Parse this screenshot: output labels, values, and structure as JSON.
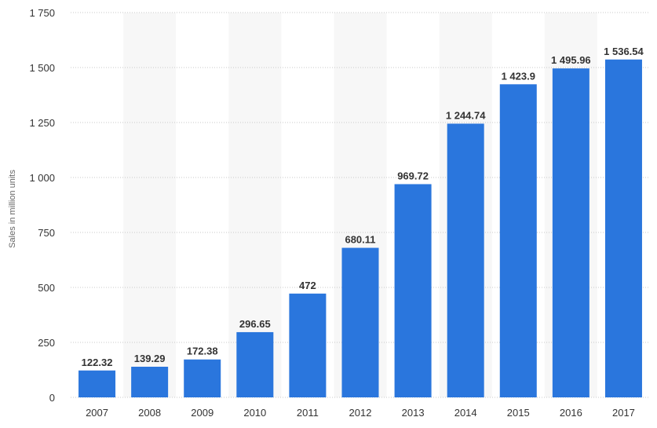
{
  "chart_data": {
    "type": "bar",
    "categories": [
      "2007",
      "2008",
      "2009",
      "2010",
      "2011",
      "2012",
      "2013",
      "2014",
      "2015",
      "2016",
      "2017"
    ],
    "values": [
      122.32,
      139.29,
      172.38,
      296.65,
      472,
      680.11,
      969.72,
      1244.74,
      1423.9,
      1495.96,
      1536.54
    ],
    "value_labels": [
      "122.32",
      "139.29",
      "172.38",
      "296.65",
      "472",
      "680.11",
      "969.72",
      "1 244.74",
      "1 423.9",
      "1 495.96",
      "1 536.54"
    ],
    "yticks": [
      0,
      250,
      500,
      750,
      1000,
      1250,
      1500,
      1750
    ],
    "ytick_labels": [
      "0",
      "250",
      "500",
      "750",
      "1 000",
      "1 250",
      "1 500",
      "1 750"
    ],
    "ylim": [
      0,
      1750
    ],
    "title": "",
    "xlabel": "",
    "ylabel": "Sales in million units",
    "grid": true,
    "colors": {
      "bar": "#2a76dd",
      "band": "#f7f7f7",
      "grid": "#c8c8c8"
    }
  }
}
